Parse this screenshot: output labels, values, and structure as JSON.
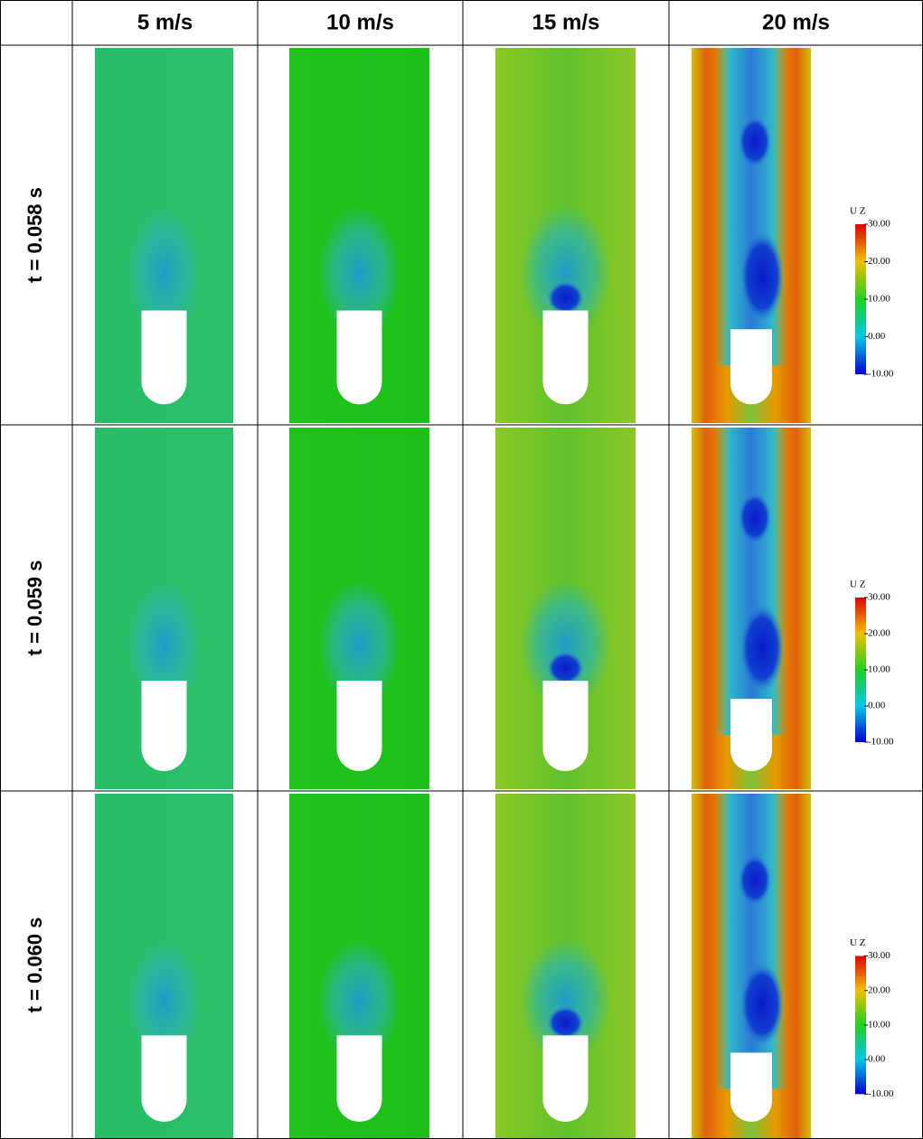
{
  "columns": [
    "5 m/s",
    "10 m/s",
    "15 m/s",
    "20 m/s"
  ],
  "rows": [
    {
      "label": "t = 0.058 s",
      "colorbar": {
        "title": "U Z",
        "ticks": [
          "30.00",
          "20.00",
          "10.00",
          "0.00",
          "-10.00"
        ]
      }
    },
    {
      "label": "t = 0.059 s",
      "colorbar": {
        "title": "U Z",
        "ticks": [
          "30.00",
          "20.00",
          "10.00",
          "0.00",
          "-10.00"
        ]
      }
    },
    {
      "label": "t = 0.060 s",
      "colorbar": {
        "title": "U Z",
        "ticks": [
          "30.00",
          "20.00",
          "10.00",
          "0.00",
          "-10.00"
        ]
      }
    }
  ]
}
